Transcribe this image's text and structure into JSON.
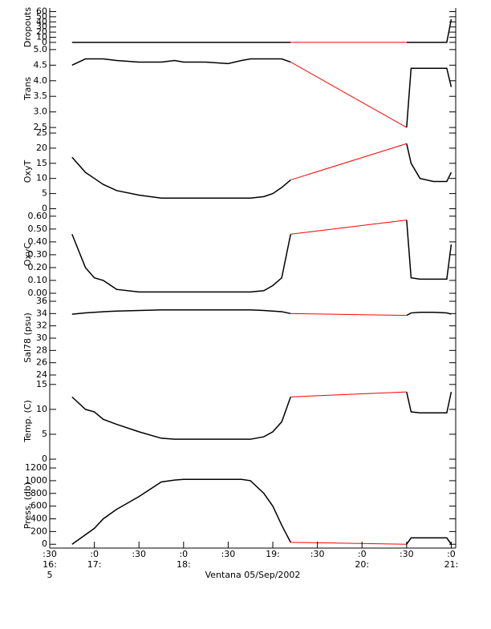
{
  "chart_data": [
    {
      "type": "line",
      "ylabel": "Dropouts",
      "color": "#000000",
      "gap_color": "#ff0000",
      "x": [
        16.75,
        16.9,
        17.0,
        17.1,
        17.25,
        17.5,
        17.75,
        17.9,
        18.0,
        18.25,
        18.5,
        18.65,
        18.75,
        18.9,
        19.0,
        19.1,
        19.2,
        20.5,
        20.55,
        20.65,
        20.8,
        20.95,
        21.0
      ],
      "values": [
        0,
        0,
        0,
        0,
        0,
        0,
        0,
        0,
        0,
        0,
        0,
        0,
        0,
        0,
        0,
        0,
        0,
        0,
        0,
        0,
        0,
        0,
        45
      ],
      "ylim": [
        -8,
        67
      ],
      "yticks": [
        0,
        10,
        20,
        30,
        40,
        50,
        60
      ]
    },
    {
      "type": "line",
      "ylabel": "Trans",
      "color": "#000000",
      "gap_color": "#ff0000",
      "x": [
        16.75,
        16.9,
        17.0,
        17.1,
        17.25,
        17.5,
        17.75,
        17.9,
        18.0,
        18.25,
        18.5,
        18.65,
        18.75,
        18.9,
        19.0,
        19.1,
        19.2,
        20.5,
        20.55,
        20.65,
        20.8,
        20.95,
        21.0
      ],
      "values": [
        4.5,
        4.7,
        4.7,
        4.7,
        4.65,
        4.6,
        4.6,
        4.65,
        4.6,
        4.6,
        4.55,
        4.65,
        4.7,
        4.7,
        4.7,
        4.7,
        4.6,
        2.5,
        4.4,
        4.4,
        4.4,
        4.4,
        3.8
      ],
      "ylim": [
        2.4,
        5.1
      ],
      "yticks": [
        2.5,
        {
          "value": 3.0,
          "label": "3.0"
        },
        3.5,
        {
          "value": 4.0,
          "label": "4.0"
        },
        4.5,
        {
          "value": 5.0,
          "label": "5.0"
        }
      ]
    },
    {
      "type": "line",
      "ylabel": "OxyT",
      "color": "#000000",
      "gap_color": "#ff0000",
      "x": [
        16.75,
        16.9,
        17.0,
        17.1,
        17.25,
        17.5,
        17.75,
        17.9,
        18.0,
        18.25,
        18.5,
        18.65,
        18.75,
        18.9,
        19.0,
        19.1,
        19.2,
        20.5,
        20.55,
        20.65,
        20.8,
        20.95,
        21.0
      ],
      "values": [
        17,
        12,
        10,
        8,
        6,
        4.5,
        3.5,
        3.5,
        3.5,
        3.5,
        3.5,
        3.5,
        3.5,
        4,
        5,
        7,
        9.5,
        21.5,
        15,
        10,
        9,
        9,
        12
      ],
      "ylim": [
        -1.2,
        25.8
      ],
      "yticks": [
        0,
        5,
        10,
        15,
        20,
        25
      ]
    },
    {
      "type": "line",
      "ylabel": "OxyC",
      "color": "#000000",
      "gap_color": "#ff0000",
      "x": [
        16.75,
        16.9,
        17.0,
        17.1,
        17.25,
        17.5,
        17.75,
        17.9,
        18.0,
        18.25,
        18.5,
        18.65,
        18.75,
        18.9,
        19.0,
        19.1,
        19.2,
        20.5,
        20.55,
        20.65,
        20.8,
        20.95,
        21.0
      ],
      "values": [
        0.46,
        0.2,
        0.12,
        0.1,
        0.03,
        0.01,
        0.01,
        0.01,
        0.01,
        0.01,
        0.01,
        0.01,
        0.01,
        0.02,
        0.06,
        0.12,
        0.46,
        0.57,
        0.12,
        0.11,
        0.11,
        0.11,
        0.38
      ],
      "ylim": [
        -0.025,
        0.63
      ],
      "yticks": [
        {
          "value": 0,
          "label": "0.00"
        },
        {
          "value": 0.1,
          "label": "0.10"
        },
        {
          "value": 0.2,
          "label": "0.20"
        },
        {
          "value": 0.3,
          "label": "0.30"
        },
        {
          "value": 0.4,
          "label": "0.40"
        },
        {
          "value": 0.5,
          "label": "0.50"
        },
        {
          "value": 0.6,
          "label": "0.60"
        }
      ]
    },
    {
      "type": "line",
      "ylabel": "Sal78 (psu)",
      "color": "#000000",
      "gap_color": "#ff0000",
      "x": [
        16.75,
        16.9,
        17.0,
        17.1,
        17.25,
        17.5,
        17.75,
        17.9,
        18.0,
        18.25,
        18.5,
        18.65,
        18.75,
        18.9,
        19.0,
        19.1,
        19.2,
        20.5,
        20.55,
        20.65,
        20.8,
        20.95,
        21.0
      ],
      "values": [
        33.9,
        34.1,
        34.2,
        34.3,
        34.4,
        34.5,
        34.6,
        34.6,
        34.6,
        34.6,
        34.6,
        34.6,
        34.6,
        34.5,
        34.4,
        34.3,
        34.0,
        33.7,
        34.1,
        34.2,
        34.2,
        34.1,
        33.9
      ],
      "ylim": [
        23.35,
        36.78
      ],
      "yticks": [
        24,
        26,
        28,
        30,
        32,
        34,
        36
      ]
    },
    {
      "type": "line",
      "ylabel": "Temp. (C)",
      "color": "#000000",
      "gap_color": "#ff0000",
      "x": [
        16.75,
        16.9,
        17.0,
        17.1,
        17.25,
        17.5,
        17.75,
        17.9,
        18.0,
        18.25,
        18.5,
        18.65,
        18.75,
        18.9,
        19.0,
        19.1,
        19.2,
        20.5,
        20.55,
        20.65,
        20.8,
        20.95,
        21.0
      ],
      "values": [
        12.5,
        10,
        9.5,
        8,
        7,
        5.5,
        4.2,
        4,
        4,
        4,
        4,
        4,
        4,
        4.5,
        5.5,
        7.5,
        12.5,
        13.5,
        9.5,
        9.3,
        9.3,
        9.3,
        13.5
      ],
      "ylim": [
        -0.8,
        16.1
      ],
      "yticks": [
        0,
        5,
        10,
        15
      ]
    },
    {
      "type": "line",
      "ylabel": "Press. (db)",
      "color": "#000000",
      "gap_color": "#ff0000",
      "x": [
        16.75,
        16.9,
        17.0,
        17.1,
        17.25,
        17.5,
        17.75,
        17.9,
        18.0,
        18.25,
        18.5,
        18.65,
        18.75,
        18.9,
        19.0,
        19.1,
        19.2,
        20.5,
        20.55,
        20.65,
        20.8,
        20.95,
        21.0
      ],
      "values": [
        0,
        150,
        250,
        400,
        550,
        750,
        980,
        1010,
        1020,
        1020,
        1020,
        1020,
        1000,
        800,
        600,
        300,
        30,
        0,
        100,
        100,
        100,
        100,
        0
      ],
      "ylim": [
        -60,
        1276
      ],
      "yticks": [
        0,
        200,
        400,
        600,
        800,
        1000,
        1200
      ],
      "xlim": [
        16.5,
        21.05
      ],
      "xticks": [
        {
          "value": 16.5,
          "label": [
            ":30",
            "16:",
            "5"
          ]
        },
        {
          "value": 17.0,
          "label": [
            ":0",
            "17:"
          ]
        },
        {
          "value": 17.5,
          "label": [
            ":30"
          ]
        },
        {
          "value": 18.0,
          "label": [
            ":0",
            "18:"
          ]
        },
        {
          "value": 18.5,
          "label": [
            ":30"
          ]
        },
        {
          "value": 19.0,
          "label": [
            "19:"
          ]
        },
        {
          "value": 19.5,
          "label": [
            ":30"
          ]
        },
        {
          "value": 20.0,
          "label": [
            ":0",
            "20:"
          ]
        },
        {
          "value": 20.5,
          "label": [
            ":30"
          ]
        },
        {
          "value": 21.0,
          "label": [
            ":0",
            "21:"
          ]
        }
      ],
      "xlabel": "Ventana 05/Sep/2002"
    }
  ]
}
